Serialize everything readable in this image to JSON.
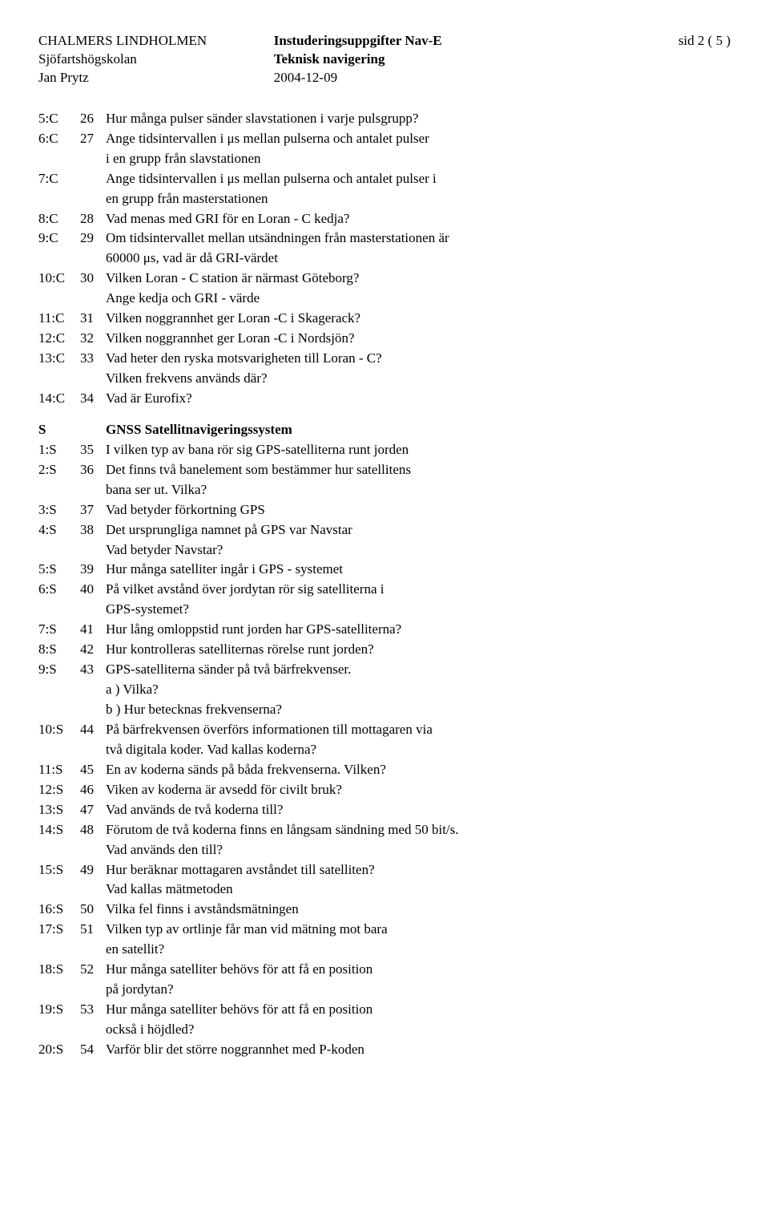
{
  "header": {
    "left1": "CHALMERS LINDHOLMEN",
    "left2": "Sjöfartshögskolan",
    "left3": "Jan Prytz",
    "center1": "Instuderingsuppgifter Nav-E",
    "center2": "Teknisk navigering",
    "center3": "2004-12-09",
    "right1": "sid 2 ( 5 )"
  },
  "rows": [
    {
      "code": "5:C",
      "num": "26",
      "lines": [
        "Hur många pulser sänder slavstationen i varje pulsgrupp?"
      ]
    },
    {
      "code": "6:C",
      "num": "27",
      "lines": [
        "Ange tidsintervallen i μs mellan pulserna och antalet pulser",
        "i en grupp från slavstationen"
      ]
    },
    {
      "code": "7:C",
      "num": "",
      "lines": [
        "Ange tidsintervallen i μs mellan pulserna och antalet pulser i",
        "en grupp från masterstationen"
      ]
    },
    {
      "code": "8:C",
      "num": "28",
      "lines": [
        "Vad menas med GRI för en Loran - C kedja?"
      ]
    },
    {
      "code": "9:C",
      "num": "29",
      "lines": [
        "Om tidsintervallet mellan utsändningen från masterstationen är",
        "60000 μs, vad är då GRI-värdet"
      ]
    },
    {
      "code": "10:C",
      "num": "30",
      "lines": [
        "Vilken Loran - C station är närmast Göteborg?",
        "Ange kedja och GRI - värde"
      ]
    },
    {
      "code": "11:C",
      "num": "31",
      "lines": [
        "Vilken noggrannhet ger Loran -C i Skagerack?"
      ]
    },
    {
      "code": "12:C",
      "num": "32",
      "lines": [
        "Vilken noggrannhet ger Loran -C i Nordsjön?"
      ]
    },
    {
      "code": "13:C",
      "num": "33",
      "lines": [
        "Vad heter den ryska motsvarigheten till Loran - C?",
        "Vilken frekvens används där?"
      ]
    },
    {
      "code": "14:C",
      "num": "34",
      "lines": [
        "Vad är Eurofix?"
      ]
    }
  ],
  "section": {
    "code": "S",
    "heading": "GNSS   Satellitnavigeringssystem"
  },
  "rows2": [
    {
      "code": "1:S",
      "num": "35",
      "lines": [
        "I vilken typ av bana rör sig GPS-satelliterna runt jorden"
      ]
    },
    {
      "code": "2:S",
      "num": "36",
      "lines": [
        "Det finns två banelement som bestämmer hur satellitens",
        "bana ser ut. Vilka?"
      ]
    },
    {
      "code": "3:S",
      "num": "37",
      "lines": [
        "Vad betyder förkortning GPS"
      ]
    },
    {
      "code": "4:S",
      "num": "38",
      "lines": [
        "Det ursprungliga namnet på GPS var Navstar",
        "Vad betyder Navstar?"
      ]
    },
    {
      "code": "5:S",
      "num": "39",
      "lines": [
        "Hur många satelliter ingår i GPS - systemet"
      ]
    },
    {
      "code": "6:S",
      "num": "40",
      "lines": [
        "På vilket avstånd över jordytan rör sig satelliterna i",
        "GPS-systemet?"
      ]
    },
    {
      "code": "7:S",
      "num": "41",
      "lines": [
        "Hur lång omloppstid runt jorden har GPS-satelliterna?"
      ]
    },
    {
      "code": "8:S",
      "num": "42",
      "lines": [
        "Hur kontrolleras satelliternas rörelse runt jorden?"
      ]
    },
    {
      "code": "9:S",
      "num": "43",
      "lines": [
        "GPS-satelliterna sänder på två bärfrekvenser.",
        "a ) Vilka?",
        "b ) Hur betecknas frekvenserna?"
      ]
    },
    {
      "code": "10:S",
      "num": "44",
      "lines": [
        "På bärfrekvensen överförs informationen till mottagaren via",
        "två digitala koder. Vad kallas koderna?"
      ]
    },
    {
      "code": "11:S",
      "num": "45",
      "lines": [
        "En av koderna sänds på båda frekvenserna. Vilken?"
      ]
    },
    {
      "code": "12:S",
      "num": "46",
      "lines": [
        "Viken av koderna är avsedd för civilt bruk?"
      ]
    },
    {
      "code": "13:S",
      "num": "47",
      "lines": [
        "Vad används de två koderna till?"
      ]
    },
    {
      "code": "14:S",
      "num": "48",
      "lines": [
        "Förutom de två koderna finns en långsam sändning med 50 bit/s.",
        "Vad används den till?"
      ]
    },
    {
      "code": "15:S",
      "num": "49",
      "lines": [
        "Hur beräknar mottagaren avståndet till satelliten?",
        "Vad kallas mätmetoden"
      ]
    },
    {
      "code": "16:S",
      "num": "50",
      "lines": [
        "Vilka fel finns i avståndsmätningen"
      ]
    },
    {
      "code": "17:S",
      "num": "51",
      "lines": [
        "Vilken typ av ortlinje får man vid mätning mot bara",
        "en satellit?"
      ]
    },
    {
      "code": "18:S",
      "num": "52",
      "lines": [
        "Hur många satelliter behövs för att få en position",
        "på jordytan?"
      ]
    },
    {
      "code": "19:S",
      "num": "53",
      "lines": [
        "Hur många satelliter behövs för att få en position",
        "också i höjdled?"
      ]
    },
    {
      "code": "20:S",
      "num": "54",
      "lines": [
        "Varför blir det större noggrannhet med P-koden"
      ]
    }
  ]
}
